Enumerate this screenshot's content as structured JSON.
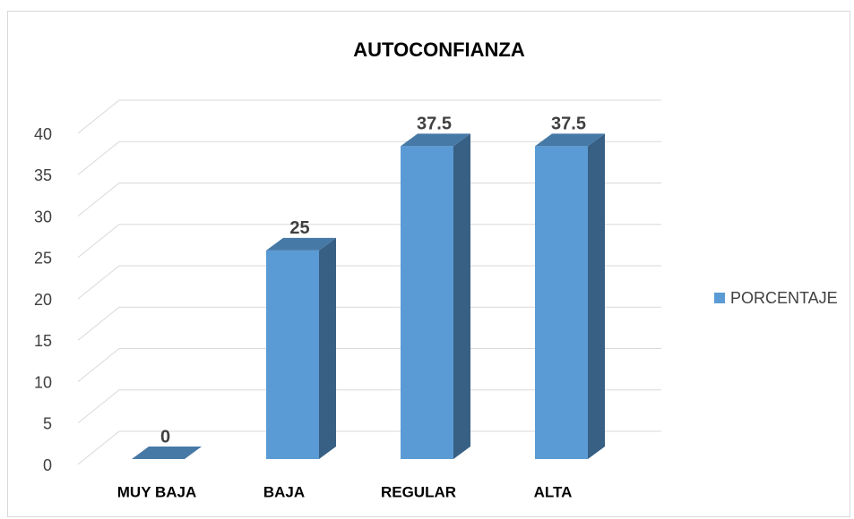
{
  "chart_data": {
    "type": "bar3d",
    "title": "AUTOCONFIANZA",
    "categories": [
      "MUY BAJA",
      "BAJA",
      "REGULAR",
      "ALTA"
    ],
    "series": [
      {
        "name": "PORCENTAJE",
        "color": "#5b9bd5",
        "values": [
          0,
          25,
          37.5,
          37.5
        ]
      }
    ],
    "ylim": [
      0,
      40
    ],
    "yticks": [
      0,
      5,
      10,
      15,
      20,
      25,
      30,
      35,
      40
    ],
    "grid": true,
    "legend": "right"
  }
}
